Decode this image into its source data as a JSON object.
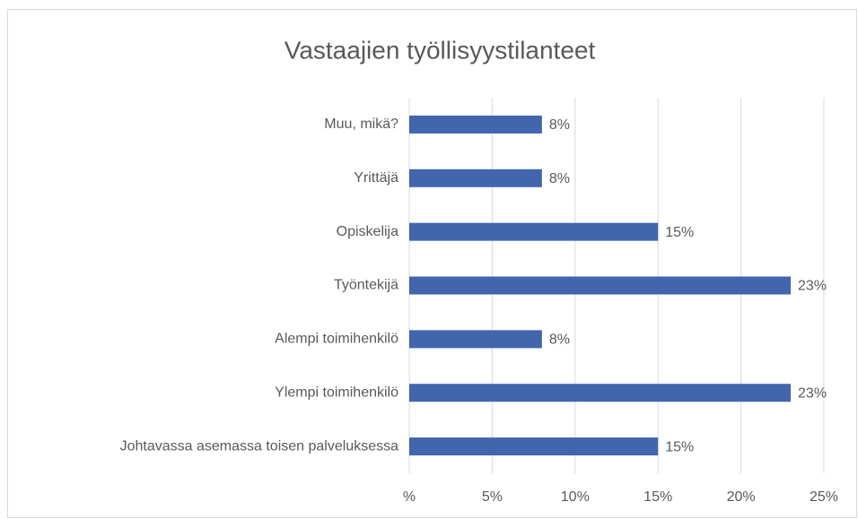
{
  "chart_data": {
    "type": "bar",
    "orientation": "horizontal",
    "title": "Vastaajien työllisyystilanteet",
    "categories": [
      "Muu, mikä?",
      "Yrittäjä",
      "Opiskelija",
      "Työntekijä",
      "Alempi toimihenkilö",
      "Ylempi toimihenkilö",
      "Johtavassa asemassa toisen palveluksessa"
    ],
    "values": [
      8,
      8,
      15,
      23,
      8,
      23,
      15
    ],
    "value_labels": [
      "8%",
      "8%",
      "15%",
      "23%",
      "8%",
      "23%",
      "15%"
    ],
    "color": "#4166ae",
    "xlim": [
      0,
      25
    ],
    "xticks": [
      {
        "value": 0,
        "label": "%"
      },
      {
        "value": 5,
        "label": "5%"
      },
      {
        "value": 10,
        "label": "10%"
      },
      {
        "value": 15,
        "label": "15%"
      },
      {
        "value": 20,
        "label": "20%"
      },
      {
        "value": 25,
        "label": "25%"
      }
    ],
    "grid": true
  }
}
